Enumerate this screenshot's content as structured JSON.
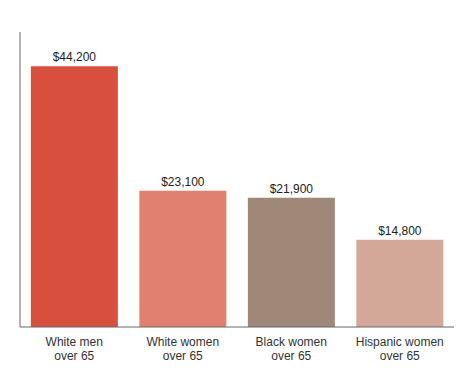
{
  "chart_data": {
    "type": "bar",
    "categories": [
      "White men\nover 65",
      "White women\nover 65",
      "Black women\nover 65",
      "Hispanic women\nover 65"
    ],
    "values": [
      44200,
      23100,
      21900,
      14800
    ],
    "value_labels": [
      "$44,200",
      "$23,100",
      "$21,900",
      "$14,800"
    ],
    "colors": [
      "#d94f3d",
      "#e08070",
      "#a08878",
      "#d4a898"
    ],
    "ylim": [
      0,
      50000
    ],
    "data_labels": true,
    "tick_labels": "x",
    "grid": false
  }
}
